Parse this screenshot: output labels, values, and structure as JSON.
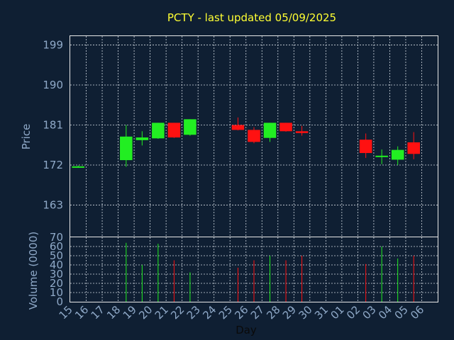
{
  "chart_data": {
    "type": "candlestick",
    "title": "PCTY - last updated 05/09/2025",
    "xlabel": "Day",
    "price_ylabel": "Price",
    "volume_ylabel": "Volume (0000)",
    "x_ticks": [
      "15",
      "16",
      "17",
      "18",
      "19",
      "20",
      "21",
      "22",
      "23",
      "24",
      "25",
      "26",
      "27",
      "28",
      "29",
      "30",
      "31",
      "01",
      "02",
      "03",
      "04",
      "05",
      "06"
    ],
    "price_yticks": [
      163,
      172,
      181,
      190,
      199
    ],
    "price_ylim": [
      155.9,
      201.0
    ],
    "volume_yticks": [
      0,
      10,
      20,
      30,
      40,
      50,
      60,
      70
    ],
    "volume_ylim": [
      0,
      70
    ],
    "colors": {
      "up": "#22ee22",
      "down": "#ff1111",
      "background": "#0f1f33",
      "title": "#ffff33",
      "ticks": "#8fa9c8"
    },
    "candles": [
      {
        "x": "15",
        "open": 171.7,
        "high": 171.9,
        "low": 171.4,
        "close": 171.7,
        "volume": 0
      },
      {
        "x": "18",
        "open": 173.1,
        "high": 181.0,
        "low": 171.6,
        "close": 178.4,
        "volume": 64
      },
      {
        "x": "19",
        "open": 177.6,
        "high": 179.6,
        "low": 176.4,
        "close": 178.2,
        "volume": 40
      },
      {
        "x": "20",
        "open": 178.0,
        "high": 181.5,
        "low": 177.9,
        "close": 181.5,
        "volume": 63
      },
      {
        "x": "21",
        "open": 181.5,
        "high": 181.5,
        "low": 178.1,
        "close": 178.2,
        "volume": 45
      },
      {
        "x": "22",
        "open": 178.8,
        "high": 182.3,
        "low": 178.6,
        "close": 182.3,
        "volume": 32
      },
      {
        "x": "25",
        "open": 181.0,
        "high": 182.7,
        "low": 179.8,
        "close": 179.9,
        "volume": 37
      },
      {
        "x": "26",
        "open": 179.9,
        "high": 180.5,
        "low": 176.9,
        "close": 177.2,
        "volume": 45
      },
      {
        "x": "27",
        "open": 178.1,
        "high": 181.5,
        "low": 177.2,
        "close": 181.5,
        "volume": 50
      },
      {
        "x": "28",
        "open": 181.5,
        "high": 181.5,
        "low": 179.5,
        "close": 179.6,
        "volume": 45
      },
      {
        "x": "29",
        "open": 179.6,
        "high": 180.8,
        "low": 178.6,
        "close": 179.2,
        "volume": 50
      },
      {
        "x": "02",
        "open": 177.7,
        "high": 179.1,
        "low": 173.6,
        "close": 174.7,
        "volume": 41
      },
      {
        "x": "03",
        "open": 173.8,
        "high": 175.5,
        "low": 172.2,
        "close": 174.1,
        "volume": 60
      },
      {
        "x": "04",
        "open": 173.2,
        "high": 176.2,
        "low": 172.0,
        "close": 175.4,
        "volume": 47
      },
      {
        "x": "05",
        "open": 177.1,
        "high": 179.4,
        "low": 173.3,
        "close": 174.5,
        "volume": 50
      }
    ]
  }
}
